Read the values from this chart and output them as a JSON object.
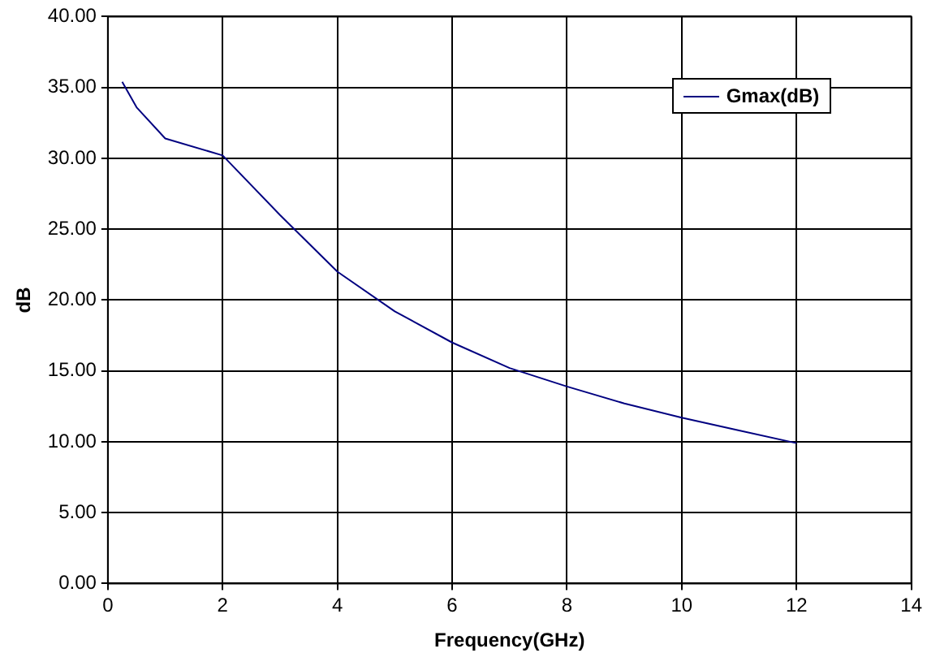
{
  "chart_data": {
    "type": "line",
    "xlabel": "Frequency(GHz)",
    "ylabel": "dB",
    "x": [
      0.25,
      0.5,
      1,
      2,
      3,
      4,
      5,
      6,
      7,
      8,
      9,
      10,
      11,
      12
    ],
    "series": [
      {
        "name": "Gmax(dB)",
        "color": "#000080",
        "values": [
          35.4,
          33.6,
          31.4,
          30.2,
          26.0,
          22.0,
          19.2,
          17.0,
          15.2,
          13.9,
          12.7,
          11.7,
          10.8,
          9.9
        ]
      }
    ],
    "xlim": [
      0,
      14
    ],
    "xticks": [
      0,
      2,
      4,
      6,
      8,
      10,
      12,
      14
    ],
    "ylim": [
      0,
      40
    ],
    "yticks": [
      {
        "value": 0,
        "label": "0.00"
      },
      {
        "value": 5,
        "label": "5.00"
      },
      {
        "value": 10,
        "label": "10.00"
      },
      {
        "value": 15,
        "label": "15.00"
      },
      {
        "value": 20,
        "label": "20.00"
      },
      {
        "value": 25,
        "label": "25.00"
      },
      {
        "value": 30,
        "label": "30.00"
      },
      {
        "value": 35,
        "label": "35.00"
      },
      {
        "value": 40,
        "label": "40.00"
      }
    ],
    "grid": true,
    "legend": "top right",
    "marker": "none",
    "line_style": "solid"
  }
}
